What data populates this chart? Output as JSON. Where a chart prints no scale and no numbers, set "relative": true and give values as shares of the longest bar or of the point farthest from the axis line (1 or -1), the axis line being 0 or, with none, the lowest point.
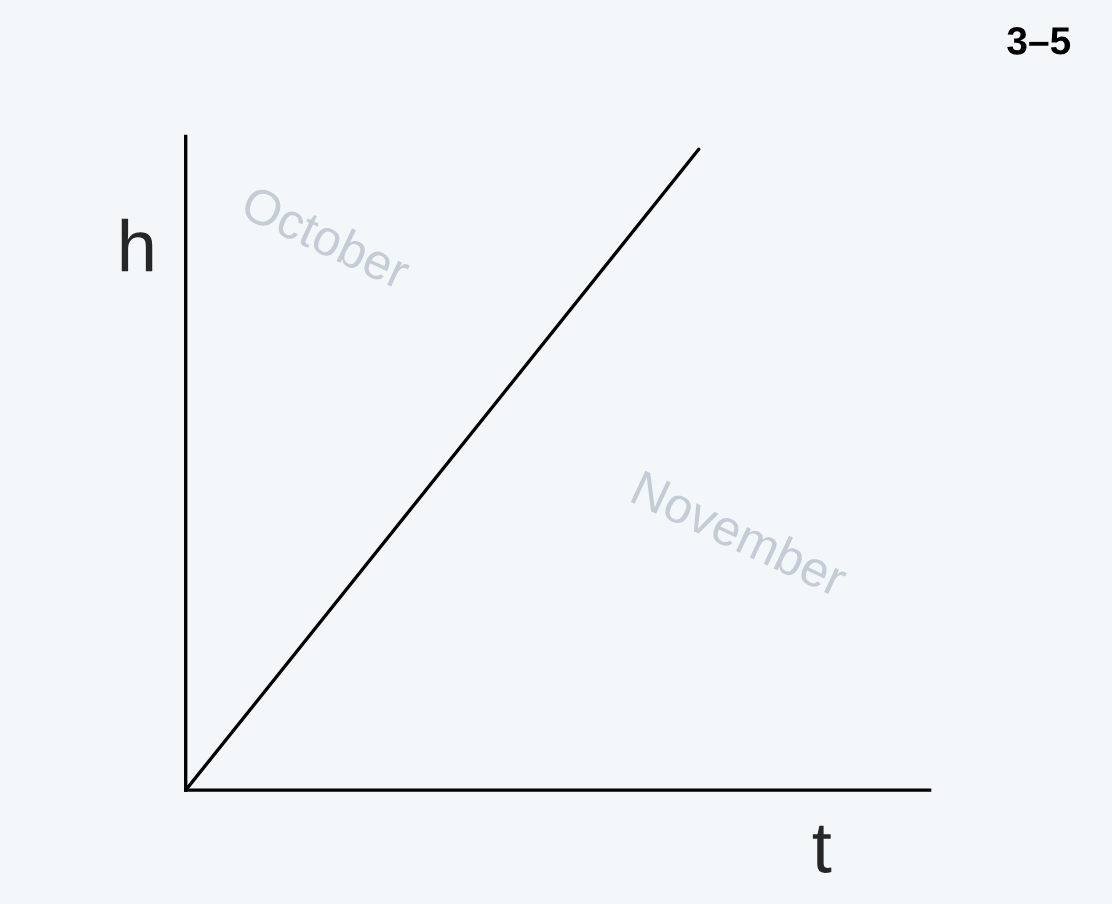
{
  "chart_data": {
    "type": "line",
    "relative": true,
    "xlabel": "t",
    "ylabel": "h",
    "categories": [
      null,
      null
    ],
    "series": [
      {
        "color": "#000000",
        "values": [
          0,
          1
        ]
      }
    ],
    "annotations": [
      "3–5",
      "October",
      "November"
    ],
    "marker": "none",
    "line_style": "solid"
  }
}
